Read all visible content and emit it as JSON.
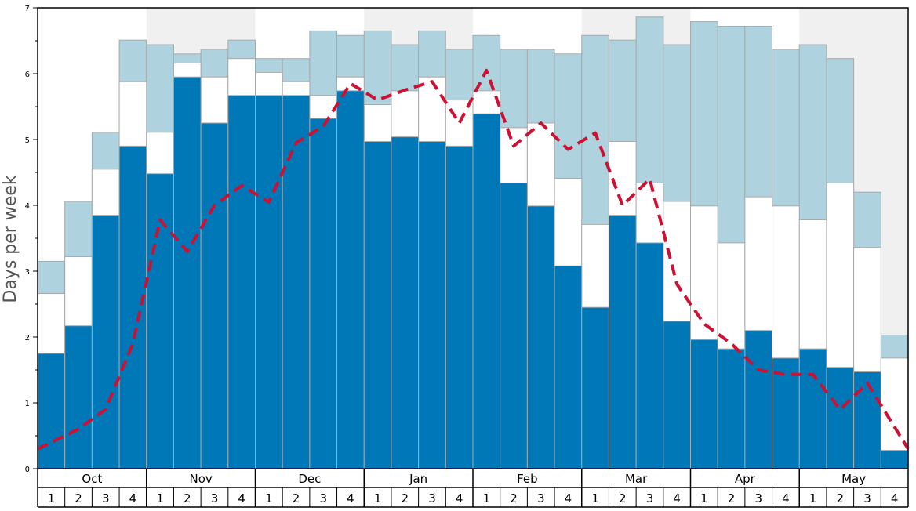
{
  "chart_data": {
    "type": "bar",
    "ylabel": "Days per week",
    "ylim": [
      0,
      7
    ],
    "yticks": [
      0,
      1,
      2,
      3,
      4,
      5,
      6,
      7
    ],
    "months": [
      "Oct",
      "Nov",
      "Dec",
      "Jan",
      "Feb",
      "Mar",
      "Apr",
      "May"
    ],
    "week_labels": [
      "1",
      "2",
      "3",
      "4"
    ],
    "shaded_months": [
      "Nov",
      "Jan",
      "Mar",
      "May"
    ],
    "colors": {
      "series1": "#0077b6",
      "series2": "#ffffff",
      "series3": "#aed3df",
      "line": "#cc1133",
      "shade": "#f0f0f0",
      "bar_edge": "#a9a9a9"
    },
    "series": [
      {
        "key": "series1",
        "values": [
          1.75,
          2.17,
          3.85,
          4.9,
          4.48,
          5.95,
          5.25,
          5.67,
          5.67,
          5.67,
          5.32,
          5.74,
          4.97,
          5.04,
          4.97,
          4.9,
          5.39,
          4.34,
          3.99,
          3.08,
          2.45,
          3.85,
          3.43,
          2.24,
          1.96,
          1.82,
          2.1,
          1.68,
          1.82,
          1.54,
          1.47,
          0.28
        ]
      },
      {
        "key": "series2",
        "values": [
          2.66,
          3.22,
          4.55,
          5.88,
          5.11,
          6.16,
          5.95,
          6.23,
          6.02,
          5.88,
          5.67,
          5.95,
          5.53,
          5.74,
          5.95,
          5.6,
          5.74,
          5.18,
          5.25,
          4.41,
          3.71,
          4.97,
          4.34,
          4.06,
          3.99,
          3.43,
          4.13,
          3.99,
          3.78,
          4.34,
          3.36,
          1.68
        ]
      },
      {
        "key": "series3",
        "values": [
          3.15,
          4.06,
          5.11,
          6.51,
          6.44,
          6.3,
          6.37,
          6.51,
          6.23,
          6.23,
          6.65,
          6.58,
          6.65,
          6.44,
          6.65,
          6.37,
          6.58,
          6.37,
          6.37,
          6.3,
          6.58,
          6.51,
          6.86,
          6.44,
          6.79,
          6.72,
          6.72,
          6.37,
          6.44,
          6.23,
          4.2,
          2.03
        ]
      }
    ],
    "line": {
      "style": "dashed",
      "values": [
        0.3,
        0.6,
        0.9,
        1.9,
        3.78,
        3.3,
        4.0,
        4.3,
        4.05,
        4.95,
        5.2,
        5.85,
        5.6,
        5.75,
        5.88,
        5.25,
        6.05,
        4.9,
        5.25,
        4.85,
        5.1,
        4.0,
        4.4,
        2.8,
        2.2,
        1.9,
        1.5,
        1.43,
        1.43,
        0.9,
        1.3,
        0.3
      ]
    }
  }
}
